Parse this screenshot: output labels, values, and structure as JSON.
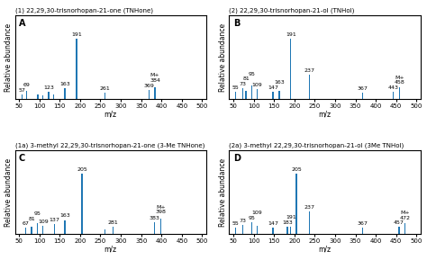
{
  "chart_data": [
    {
      "type": "bar",
      "title": "(1) 22,29,30-trisnorhopan-21-one (TNHone)",
      "panel_label": "A",
      "x": [
        57,
        69,
        96,
        109,
        123,
        135,
        163,
        191,
        261,
        369,
        384
      ],
      "values": [
        0.08,
        0.14,
        0.08,
        0.06,
        0.12,
        0.08,
        0.18,
        1.0,
        0.1,
        0.15,
        0.2
      ],
      "annotations": [
        {
          "text": "57",
          "x": 57,
          "y": 0.08
        },
        {
          "text": "69",
          "x": 69,
          "y": 0.14
        },
        {
          "text": "123",
          "x": 123,
          "y": 0.12
        },
        {
          "text": "163",
          "x": 163,
          "y": 0.18
        },
        {
          "text": "191",
          "x": 191,
          "y": 1.0
        },
        {
          "text": "261",
          "x": 261,
          "y": 0.1
        },
        {
          "text": "369",
          "x": 369,
          "y": 0.15
        },
        {
          "text": "384",
          "x": 384,
          "y": 0.2
        },
        {
          "text": "M+",
          "x": 384,
          "y": 0.2
        }
      ],
      "xlim": [
        40,
        510
      ],
      "xticks": [
        50,
        100,
        150,
        200,
        250,
        300,
        350,
        400,
        450,
        500
      ],
      "ylim": [
        0,
        1.38
      ],
      "tick_labels": "x",
      "xlabel": "m/z",
      "ylabel": "Relative abundance"
    },
    {
      "type": "bar",
      "title": "(2) 22,29,30-trisnorhopan-21-ol (TNHol)",
      "panel_label": "B",
      "x": [
        55,
        73,
        81,
        95,
        109,
        147,
        163,
        191,
        237,
        367,
        443,
        458
      ],
      "values": [
        0.12,
        0.18,
        0.14,
        0.22,
        0.16,
        0.12,
        0.14,
        1.0,
        0.4,
        0.1,
        0.12,
        0.2
      ],
      "annotations": [
        {
          "text": "55",
          "x": 55,
          "y": 0.12
        },
        {
          "text": "73",
          "x": 73,
          "y": 0.18
        },
        {
          "text": "81",
          "x": 81,
          "y": 0.14
        },
        {
          "text": "95",
          "x": 95,
          "y": 0.22
        },
        {
          "text": "109",
          "x": 109,
          "y": 0.16
        },
        {
          "text": "147",
          "x": 147,
          "y": 0.12
        },
        {
          "text": "163",
          "x": 163,
          "y": 0.14
        },
        {
          "text": "191",
          "x": 191,
          "y": 1.0
        },
        {
          "text": "237",
          "x": 237,
          "y": 0.4
        },
        {
          "text": "367",
          "x": 367,
          "y": 0.1
        },
        {
          "text": "443",
          "x": 443,
          "y": 0.12
        },
        {
          "text": "458",
          "x": 458,
          "y": 0.2
        },
        {
          "text": "M+",
          "x": 458,
          "y": 0.2
        }
      ],
      "xlim": [
        40,
        510
      ],
      "xticks": [
        50,
        100,
        150,
        200,
        250,
        300,
        350,
        400,
        450,
        500
      ],
      "ylim": [
        0,
        1.38
      ],
      "tick_labels": "x",
      "xlabel": "m/z",
      "ylabel": "Relative abundance"
    },
    {
      "type": "bar",
      "title": "(1a) 3-methyl 22,29,30-trisnorhopan-21-one (3-Me TNHone)",
      "panel_label": "C",
      "x": [
        67,
        81,
        95,
        109,
        137,
        163,
        205,
        261,
        281,
        383,
        398
      ],
      "values": [
        0.1,
        0.12,
        0.18,
        0.14,
        0.16,
        0.22,
        1.0,
        0.08,
        0.12,
        0.2,
        0.25
      ],
      "annotations": [
        {
          "text": "67",
          "x": 67,
          "y": 0.1
        },
        {
          "text": "81",
          "x": 81,
          "y": 0.12
        },
        {
          "text": "95",
          "x": 95,
          "y": 0.18
        },
        {
          "text": "109",
          "x": 109,
          "y": 0.14
        },
        {
          "text": "137",
          "x": 137,
          "y": 0.16
        },
        {
          "text": "163",
          "x": 163,
          "y": 0.22
        },
        {
          "text": "205",
          "x": 205,
          "y": 1.0
        },
        {
          "text": "281",
          "x": 281,
          "y": 0.12
        },
        {
          "text": "383",
          "x": 383,
          "y": 0.2
        },
        {
          "text": "398",
          "x": 398,
          "y": 0.25
        },
        {
          "text": "M+",
          "x": 398,
          "y": 0.25
        }
      ],
      "xlim": [
        40,
        510
      ],
      "xticks": [
        50,
        100,
        150,
        200,
        250,
        300,
        350,
        400,
        450,
        500
      ],
      "ylim": [
        0,
        1.38
      ],
      "tick_labels": "x",
      "xlabel": "m/z",
      "ylabel": "Relative abundance"
    },
    {
      "type": "bar",
      "title": "(2a) 3-methyl 22,29,30-trisnorhopan-21-ol (3Me TNHol)",
      "panel_label": "D",
      "x": [
        55,
        73,
        95,
        109,
        147,
        183,
        191,
        205,
        237,
        367,
        457,
        472
      ],
      "values": [
        0.1,
        0.15,
        0.2,
        0.14,
        0.1,
        0.12,
        0.12,
        1.0,
        0.38,
        0.1,
        0.12,
        0.18
      ],
      "annotations": [
        {
          "text": "55",
          "x": 55,
          "y": 0.1
        },
        {
          "text": "73",
          "x": 73,
          "y": 0.15
        },
        {
          "text": "95",
          "x": 95,
          "y": 0.2
        },
        {
          "text": "109",
          "x": 109,
          "y": 0.14
        },
        {
          "text": "147",
          "x": 147,
          "y": 0.1
        },
        {
          "text": "183",
          "x": 183,
          "y": 0.12
        },
        {
          "text": "191",
          "x": 191,
          "y": 0.12
        },
        {
          "text": "205",
          "x": 205,
          "y": 1.0
        },
        {
          "text": "237",
          "x": 237,
          "y": 0.38
        },
        {
          "text": "367",
          "x": 367,
          "y": 0.1
        },
        {
          "text": "457",
          "x": 457,
          "y": 0.12
        },
        {
          "text": "472",
          "x": 472,
          "y": 0.18
        },
        {
          "text": "M+",
          "x": 472,
          "y": 0.18
        }
      ],
      "xlim": [
        40,
        510
      ],
      "xticks": [
        50,
        100,
        150,
        200,
        250,
        300,
        350,
        400,
        450,
        500
      ],
      "ylim": [
        0,
        1.38
      ],
      "tick_labels": "x",
      "xlabel": "m/z",
      "ylabel": "Relative abundance"
    }
  ]
}
